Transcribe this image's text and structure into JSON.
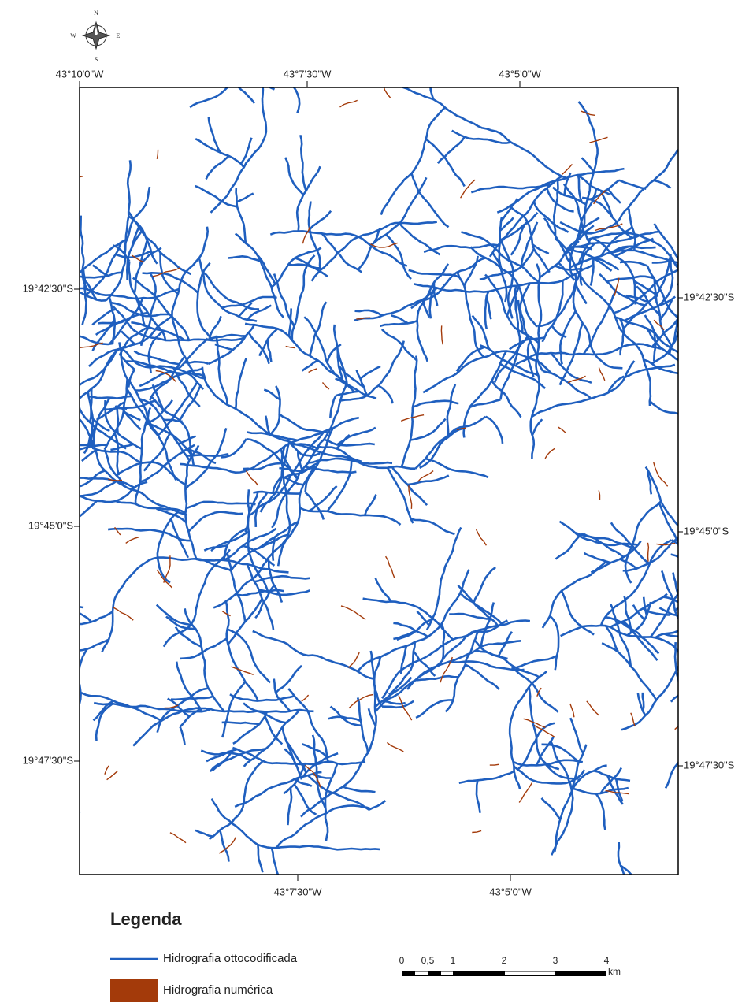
{
  "compass": {
    "north": "N",
    "south": "S",
    "east": "E",
    "west": "W"
  },
  "top_labels": [
    "43°10'0\"W",
    "43°7'30\"W",
    "43°5'0\"W"
  ],
  "bottom_labels": [
    "43°7'30\"W",
    "43°5'0\"W"
  ],
  "left_labels": [
    "19°42'30\"S",
    "19°45'0\"S",
    "19°47'30\"S"
  ],
  "right_labels": [
    "19°42'30\"S",
    "19°45'0\"S",
    "19°47'30\"S"
  ],
  "legend": {
    "title": "Legenda",
    "items": [
      "Hidrografia ottocodificada",
      "Hidrografia numérica"
    ]
  },
  "scale_bar": {
    "labels": [
      "0",
      "0,5",
      "1",
      "2",
      "3",
      "4"
    ],
    "unit": "km"
  }
}
